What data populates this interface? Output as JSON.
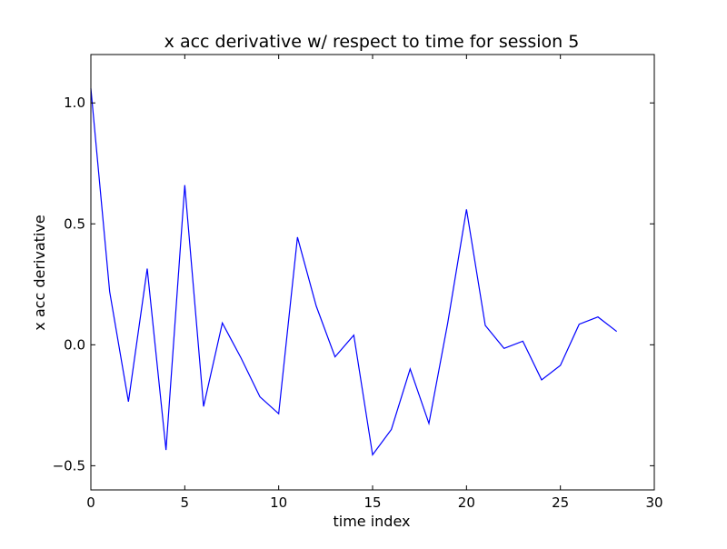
{
  "chart_data": {
    "type": "line",
    "title": "x acc derivative w/ respect to time for session 5",
    "xlabel": "time index",
    "ylabel": "x acc derivative",
    "xlim": [
      0,
      30
    ],
    "ylim": [
      -0.6,
      1.2
    ],
    "xticks": [
      0,
      5,
      10,
      15,
      20,
      25,
      30
    ],
    "xtick_labels": [
      "0",
      "5",
      "10",
      "15",
      "20",
      "25",
      "30"
    ],
    "yticks": [
      1.0,
      0.5,
      0.0,
      -0.5
    ],
    "ytick_labels": [
      "1.0",
      "0.5",
      "0.0",
      "−0.5"
    ],
    "grid": false,
    "series": [
      {
        "color": "#0000ff",
        "x": [
          0,
          1,
          2,
          3,
          4,
          5,
          6,
          7,
          8,
          9,
          10,
          11,
          12,
          13,
          14,
          15,
          16,
          17,
          18,
          19,
          20,
          21,
          22,
          23,
          24,
          25,
          26,
          27,
          28
        ],
        "y": [
          1.06,
          0.22,
          -0.235,
          0.315,
          -0.435,
          0.66,
          -0.255,
          0.09,
          -0.055,
          -0.215,
          -0.285,
          0.445,
          0.16,
          -0.05,
          0.04,
          -0.455,
          -0.35,
          -0.1,
          -0.325,
          0.09,
          0.56,
          0.08,
          -0.015,
          0.015,
          -0.145,
          -0.085,
          0.085,
          0.115,
          0.055
        ]
      }
    ]
  }
}
